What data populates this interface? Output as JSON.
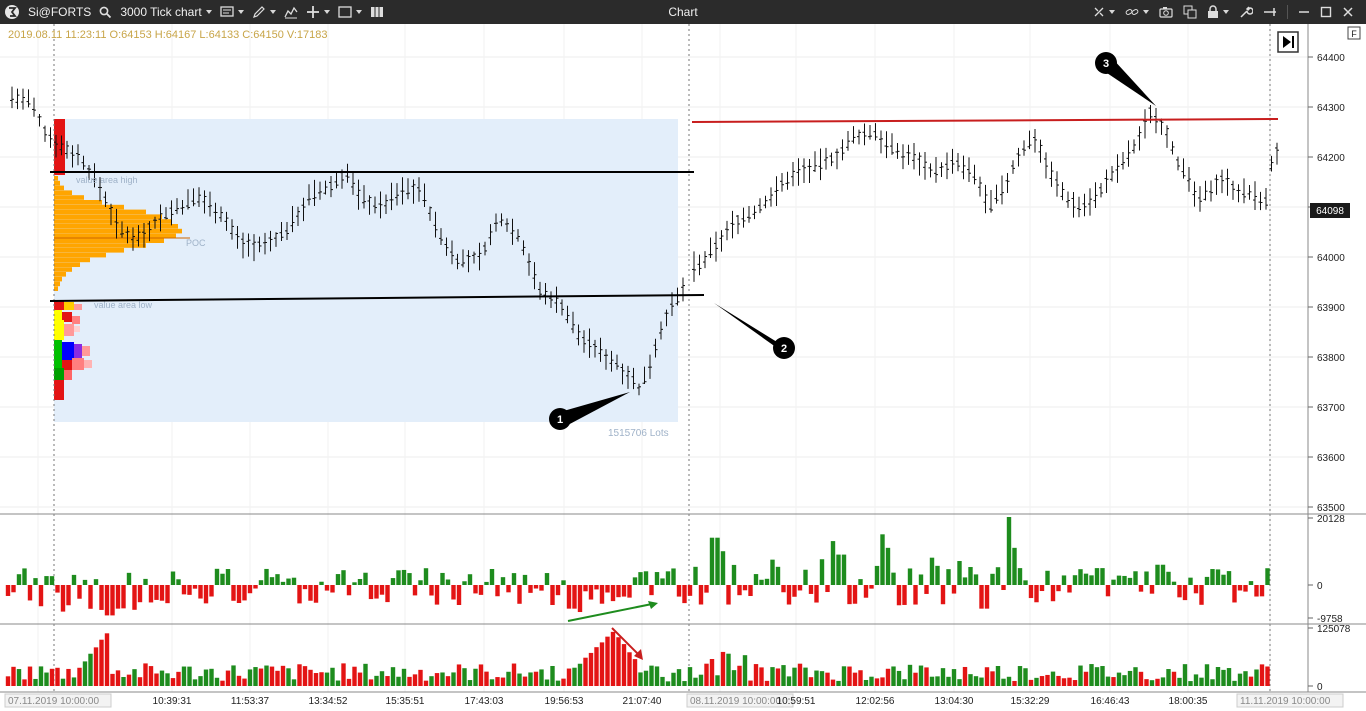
{
  "toolbar": {
    "symbol": "Si@FORTS",
    "chart_type": "3000 Tick chart",
    "window_title": "Chart"
  },
  "ohlc_readout": "2019.08.11 11:23:11 O:64153 H:64167 L:64133 C:64150 V:17183",
  "price_axis": {
    "ticks": [
      "64400",
      "64300",
      "64200",
      "64100",
      "64000",
      "63900",
      "63800",
      "63700",
      "63600",
      "63500"
    ],
    "current_price": "64098"
  },
  "delta_axis": {
    "ticks": [
      "20128",
      "0",
      "-9758"
    ]
  },
  "volume_axis": {
    "ticks": [
      "125078",
      "0"
    ]
  },
  "time_axis": {
    "labels": [
      "07.11.2019 10:00:00",
      "10:39:31",
      "11:53:37",
      "13:34:52",
      "15:35:51",
      "17:43:03",
      "19:56:53",
      "21:07:40",
      "08.11.2019 10:00:00",
      "10:59:51",
      "12:02:56",
      "13:04:30",
      "15:32:29",
      "16:46:43",
      "18:00:35",
      "11.11.2019 10:00:00"
    ]
  },
  "profile": {
    "value_area_high_label": "value area high",
    "poc_label": "POC",
    "value_area_low_label": "value area low",
    "lots_label": "1515706 Lots"
  },
  "markers": [
    "1",
    "2",
    "3"
  ],
  "corner_badge": "F",
  "colors": {
    "up": "#1e8c1e",
    "down": "#e31414",
    "profile": "#ffa500",
    "value_area": "#e3eefa",
    "resistance": "#c81e1e"
  }
}
